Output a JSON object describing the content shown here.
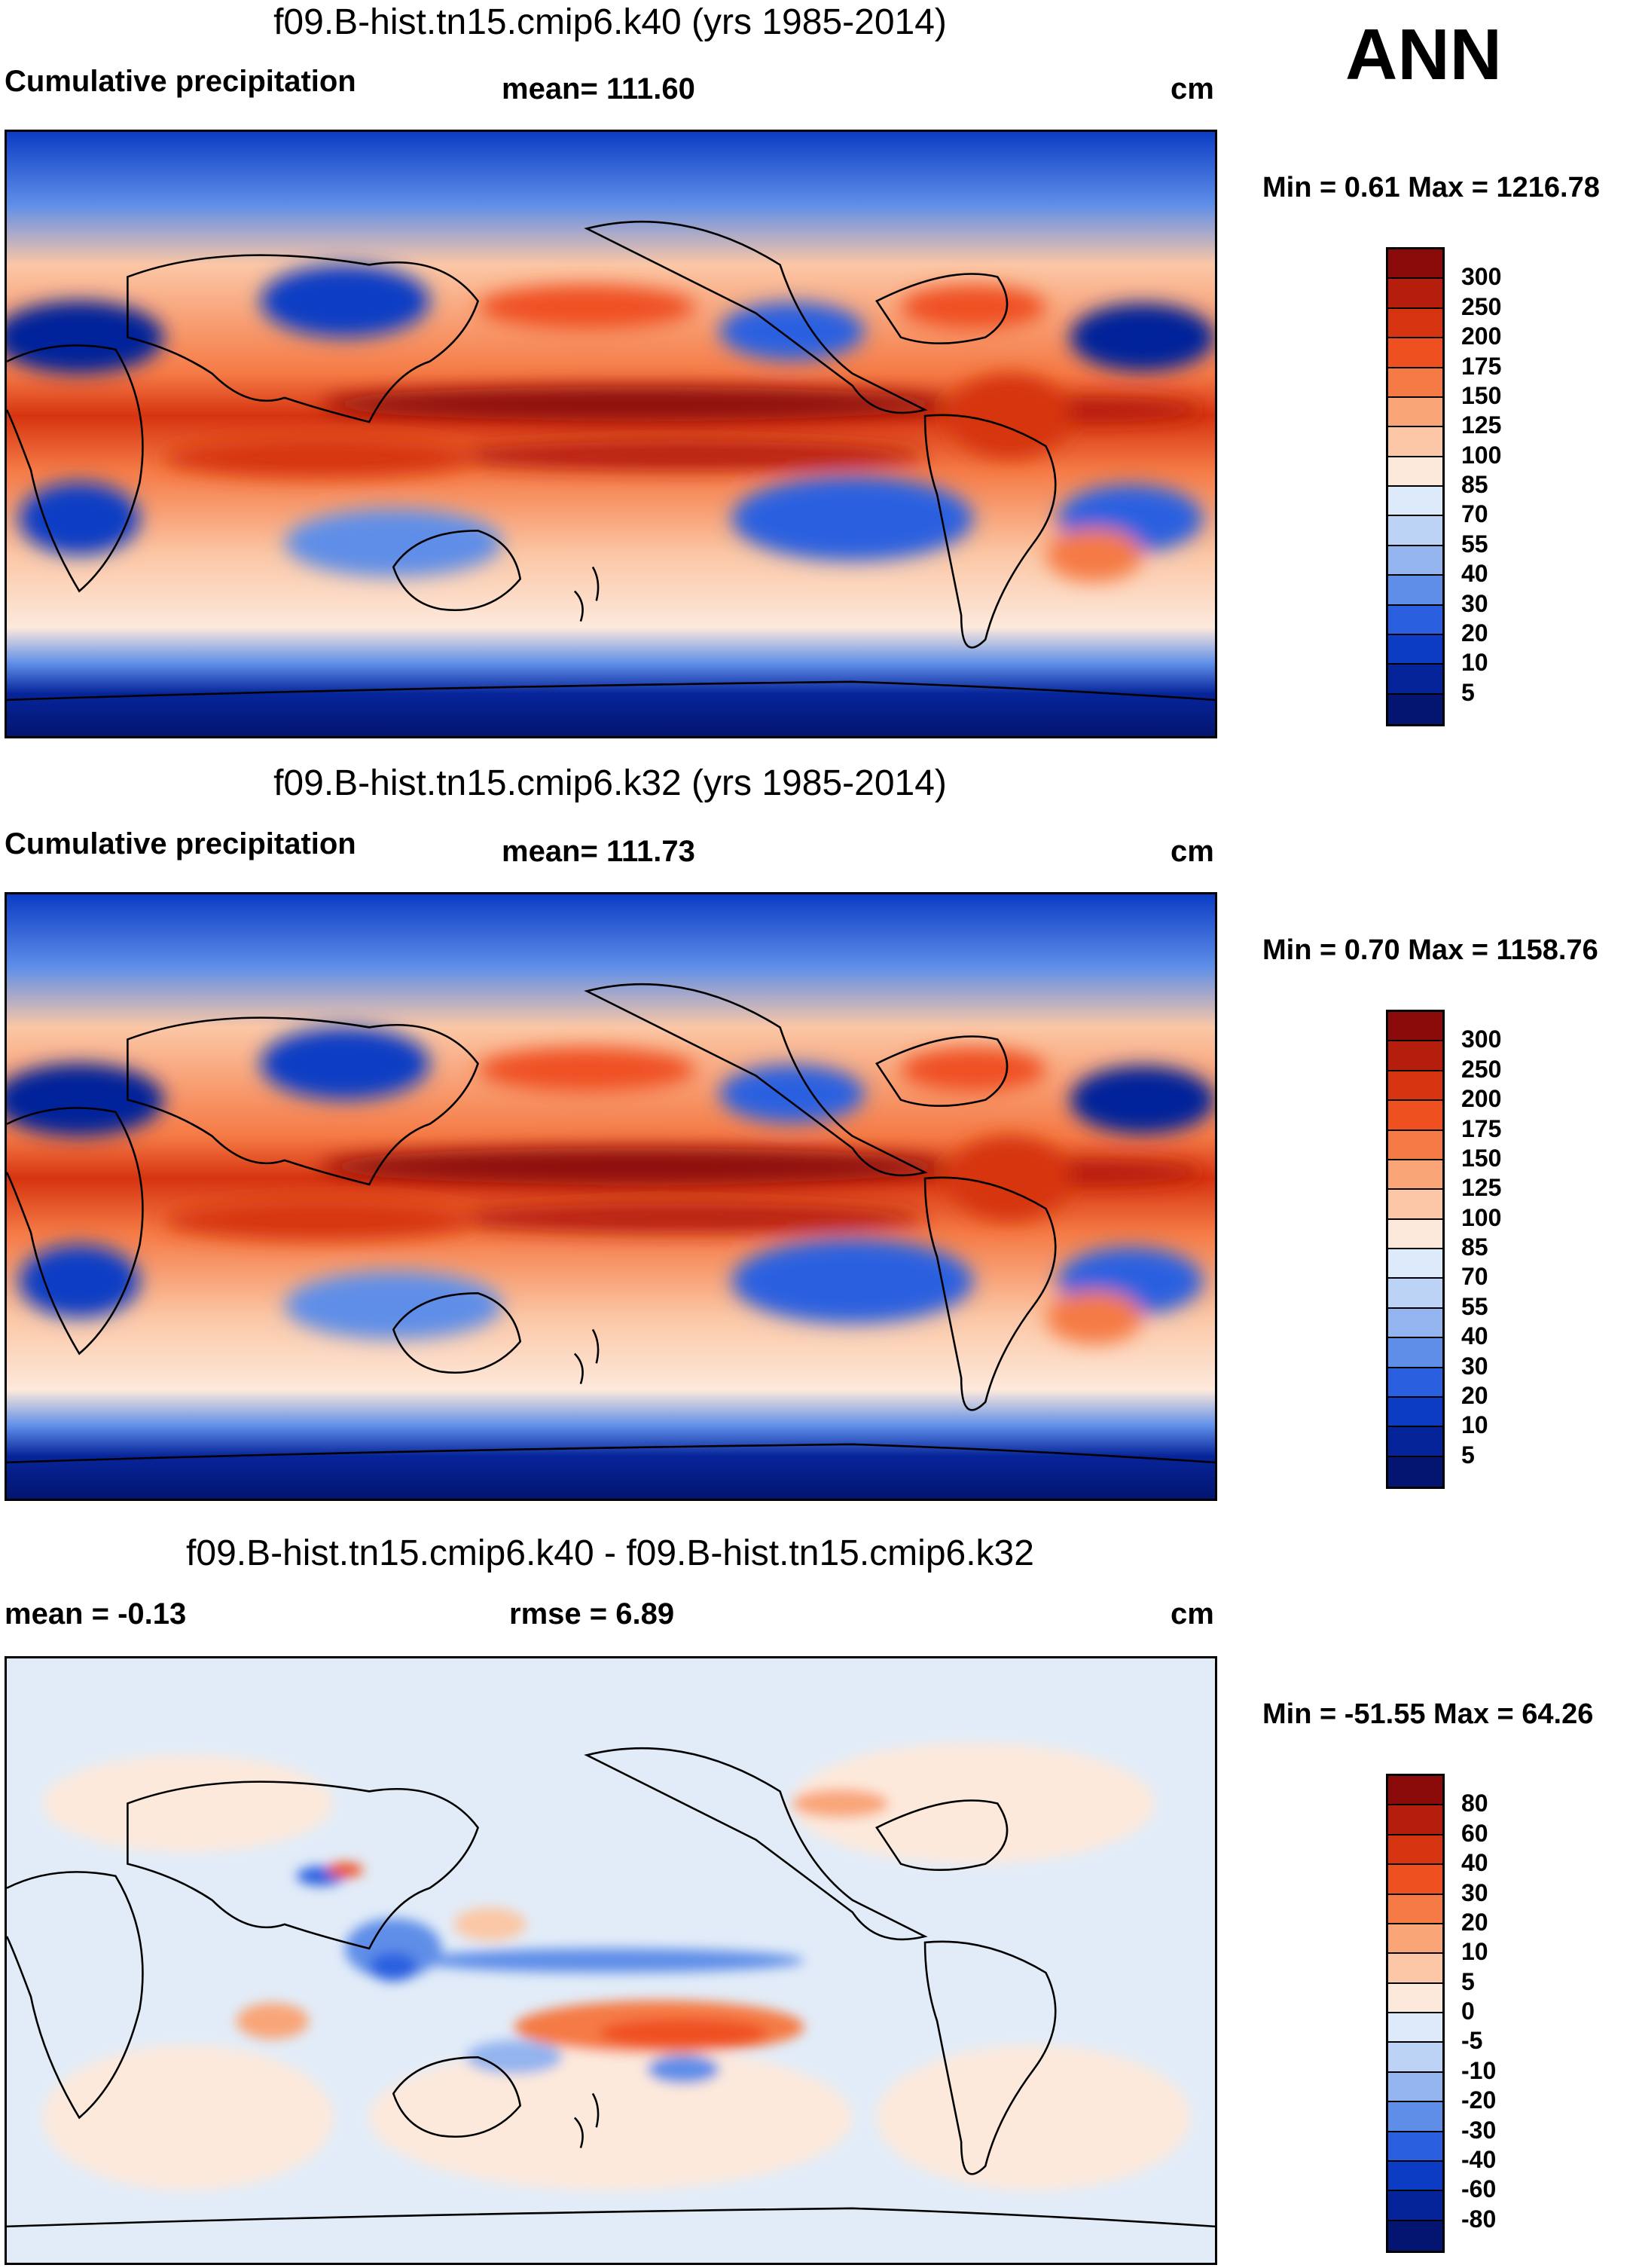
{
  "season": "ANN",
  "panels": [
    {
      "title": "f09.B-hist.tn15.cmip6.k40 (yrs 1985-2014)",
      "left_label": "Cumulative precipitation",
      "center_label": "mean= 111.60",
      "units": "cm",
      "minmax": "Min =   0.61 Max = 1216.78"
    },
    {
      "title": "f09.B-hist.tn15.cmip6.k32 (yrs 1985-2014)",
      "left_label": "Cumulative precipitation",
      "center_label": "mean= 111.73",
      "units": "cm",
      "minmax": "Min =   0.70 Max = 1158.76"
    },
    {
      "title": "f09.B-hist.tn15.cmip6.k40 - f09.B-hist.tn15.cmip6.k32",
      "left_label": "mean =  -0.13",
      "center_label": "rmse =    6.89",
      "units": "cm",
      "minmax": "Min = -51.55 Max =  64.26"
    }
  ],
  "colorbars": {
    "precip": {
      "levels": [
        "300",
        "250",
        "200",
        "175",
        "150",
        "125",
        "100",
        "85",
        "70",
        "55",
        "40",
        "30",
        "20",
        "10",
        "5"
      ],
      "colors": [
        "#8b0a0a",
        "#b51e0c",
        "#d63410",
        "#ef5020",
        "#f57a45",
        "#f9a578",
        "#fbc7a6",
        "#fde9dc",
        "#dceafa",
        "#bcd3f5",
        "#93b4ef",
        "#5e8ee8",
        "#2a60e0",
        "#0c3cc4",
        "#06249a",
        "#031570"
      ]
    },
    "diff": {
      "levels": [
        "80",
        "60",
        "40",
        "30",
        "20",
        "10",
        "5",
        "0",
        "-5",
        "-10",
        "-20",
        "-30",
        "-40",
        "-60",
        "-80"
      ],
      "colors": [
        "#8b0a0a",
        "#b51e0c",
        "#d63410",
        "#ef5020",
        "#f57a45",
        "#f9a578",
        "#fbc7a6",
        "#fde9dc",
        "#dceafa",
        "#bcd3f5",
        "#93b4ef",
        "#5e8ee8",
        "#2a60e0",
        "#0c3cc4",
        "#06249a",
        "#031570"
      ]
    }
  }
}
